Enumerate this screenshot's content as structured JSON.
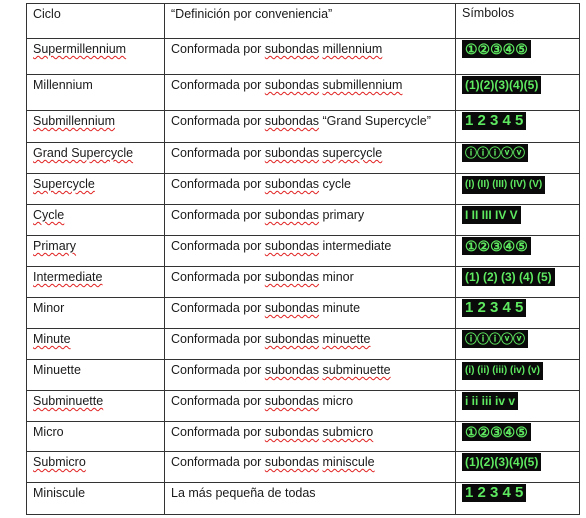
{
  "table": {
    "headers": [
      "Ciclo",
      "“Definición por conveniencia”",
      "Símbolos"
    ],
    "rows": [
      {
        "ciclo": "Supermillennium",
        "pre": "Conformada por ",
        "u": "subondas",
        "post": " ",
        "tail": "millennium",
        "tail_underlined": true,
        "sym": "①②③④⑤",
        "sym_style": "circle"
      },
      {
        "ciclo": "Millennium",
        "pre": "Conformada por ",
        "u": "subondas",
        "post": " ",
        "tail": "submillennium",
        "tail_underlined": true,
        "sym": "(1)(2)(3)(4)(5)",
        "sym_style": "paren"
      },
      {
        "ciclo": "Submillennium",
        "pre": "Conformada por ",
        "u": "subondas",
        "post": " ",
        "tail": "“Grand Supercycle”",
        "tail_underlined": false,
        "sym": "1 2 3 4 5",
        "sym_style": "plain"
      },
      {
        "ciclo": "Grand Supercycle",
        "pre": "Conformada por ",
        "u": "subondas",
        "post": " ",
        "tail": "supercycle",
        "tail_underlined": true,
        "sym": "ⓘⓘⓘⓥⓥ",
        "sym_style": "roman-circle"
      },
      {
        "ciclo": "Supercycle",
        "pre": "Conformada por ",
        "u": "subondas",
        "post": " ",
        "tail": "cycle",
        "tail_underlined": false,
        "sym": "(I) (II) (III) (IV) (V)",
        "sym_style": "roman-paren"
      },
      {
        "ciclo": "Cycle",
        "pre": "Conformada por ",
        "u": "subondas",
        "post": " ",
        "tail": "primary",
        "tail_underlined": false,
        "sym": "I II III IV V",
        "sym_style": "roman-plain"
      },
      {
        "ciclo": "Primary",
        "pre": "Conformada por ",
        "u": "subondas",
        "post": " ",
        "tail": "intermediate",
        "tail_underlined": false,
        "sym": "①②③④⑤",
        "sym_style": "circle"
      },
      {
        "ciclo": "Intermediate",
        "pre": "Conformada por ",
        "u": "subondas",
        "post": " ",
        "tail": "minor",
        "tail_underlined": false,
        "sym": "(1) (2) (3) (4) (5)",
        "sym_style": "paren"
      },
      {
        "ciclo": "Minor",
        "pre": "Conformada por ",
        "u": "subondas",
        "post": " ",
        "tail": "minute",
        "tail_underlined": false,
        "sym": "1 2 3 4 5",
        "sym_style": "plain"
      },
      {
        "ciclo": "Minute",
        "pre": "Conformada por ",
        "u": "subondas",
        "post": " ",
        "tail": "minuette",
        "tail_underlined": true,
        "sym": "ⓘⓘⓘⓥⓥ",
        "sym_style": "roman-circle"
      },
      {
        "ciclo": "Minuette",
        "pre": "Conformada por ",
        "u": "subondas",
        "post": " ",
        "tail": "subminuette",
        "tail_underlined": true,
        "sym": "(i) (ii) (iii) (iv) (v)",
        "sym_style": "roman-paren"
      },
      {
        "ciclo": "Subminuette",
        "pre": "Conformada por ",
        "u": "subondas",
        "post": " ",
        "tail": "micro",
        "tail_underlined": false,
        "sym": "i ii iii iv v",
        "sym_style": "roman-plain"
      },
      {
        "ciclo": "Micro",
        "pre": "Conformada por ",
        "u": "subondas",
        "post": " ",
        "tail": "submicro",
        "tail_underlined": true,
        "sym": "①②③④⑤",
        "sym_style": "circle"
      },
      {
        "ciclo": "Submicro",
        "pre": "Conformada por ",
        "u": "subondas",
        "post": " ",
        "tail": "miniscule",
        "tail_underlined": true,
        "sym": "(1)(2)(3)(4)(5)",
        "sym_style": "paren"
      },
      {
        "ciclo": "Miniscule",
        "pre": "La más pequeña de todas",
        "u": "",
        "post": "",
        "tail": "",
        "tail_underlined": false,
        "sym": "1 2 3 4 5",
        "sym_style": "plain"
      }
    ]
  },
  "colors": {
    "symbol_bg": "#0a0a0a",
    "symbol_fg": "#5ee860",
    "spell_underline": "#e02020"
  }
}
